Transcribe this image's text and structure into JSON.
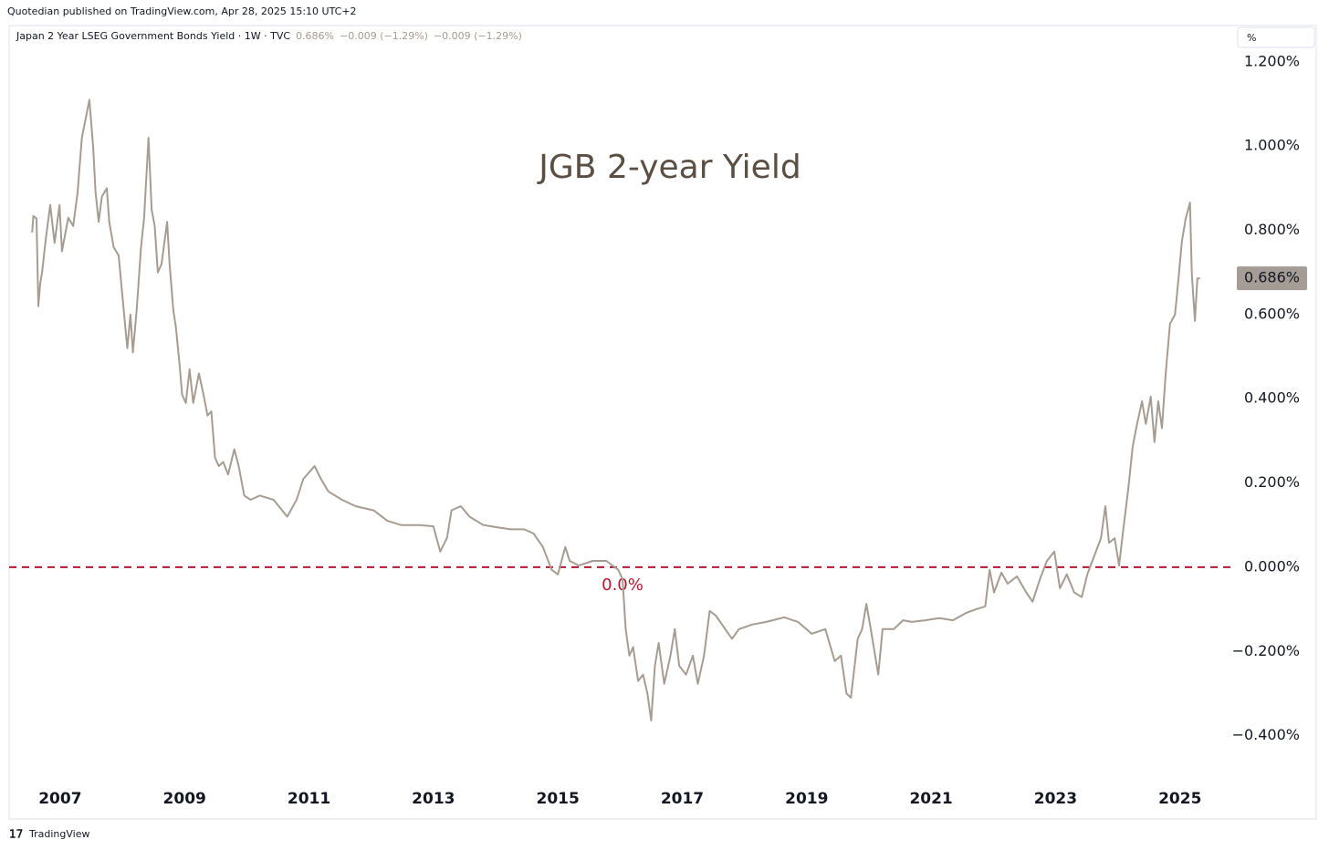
{
  "header": {
    "publisher": "Quotedian published on TradingView.com, Apr 28, 2025 15:10 UTC+2",
    "symbol": "Japan 2 Year LSEG Government Bonds Yield · 1W · TVC",
    "last": "0.686%",
    "change1": "−0.009 (−1.29%)",
    "change2": "−0.009 (−1.29%)",
    "unit": "%",
    "footer": "TradingView"
  },
  "chart_data": {
    "type": "line",
    "title": "JGB 2-year Yield",
    "x": [
      2006.55,
      2006.57,
      2006.62,
      2006.65,
      2006.68,
      2006.71,
      2006.77,
      2006.84,
      2006.91,
      2006.99,
      2007.03,
      2007.13,
      2007.21,
      2007.28,
      2007.35,
      2007.43,
      2007.47,
      2007.53,
      2007.57,
      2007.62,
      2007.67,
      2007.75,
      2007.79,
      2007.86,
      2007.94,
      2008.01,
      2008.08,
      2008.13,
      2008.17,
      2008.23,
      2008.3,
      2008.35,
      2008.42,
      2008.47,
      2008.52,
      2008.57,
      2008.63,
      2008.72,
      2008.76,
      2008.82,
      2008.86,
      2008.92,
      2008.96,
      2009.02,
      2009.08,
      2009.14,
      2009.23,
      2009.29,
      2009.37,
      2009.43,
      2009.49,
      2009.55,
      2009.62,
      2009.7,
      2009.8,
      2009.87,
      2009.96,
      2010.06,
      2010.21,
      2010.43,
      2010.65,
      2010.8,
      2010.91,
      2011.09,
      2011.19,
      2011.31,
      2011.53,
      2011.75,
      2012.04,
      2012.26,
      2012.48,
      2012.78,
      2013.0,
      2013.11,
      2013.22,
      2013.29,
      2013.44,
      2013.58,
      2013.8,
      2014.02,
      2014.24,
      2014.46,
      2014.61,
      2014.76,
      2014.9,
      2015.0,
      2015.12,
      2015.19,
      2015.34,
      2015.56,
      2015.78,
      2015.97,
      2016.04,
      2016.09,
      2016.15,
      2016.21,
      2016.29,
      2016.37,
      2016.44,
      2016.5,
      2016.56,
      2016.62,
      2016.71,
      2016.81,
      2016.88,
      2016.95,
      2017.06,
      2017.17,
      2017.25,
      2017.35,
      2017.44,
      2017.54,
      2017.69,
      2017.8,
      2017.91,
      2018.13,
      2018.35,
      2018.64,
      2018.86,
      2019.08,
      2019.3,
      2019.45,
      2019.55,
      2019.64,
      2019.71,
      2019.82,
      2019.89,
      2019.96,
      2020.03,
      2020.15,
      2020.22,
      2020.4,
      2020.55,
      2020.69,
      2020.91,
      2021.13,
      2021.35,
      2021.57,
      2021.72,
      2021.87,
      2021.94,
      2022.01,
      2022.13,
      2022.23,
      2022.38,
      2022.53,
      2022.63,
      2022.75,
      2022.86,
      2022.98,
      2023.07,
      2023.18,
      2023.3,
      2023.42,
      2023.51,
      2023.62,
      2023.73,
      2023.8,
      2023.86,
      2023.95,
      2024.02,
      2024.09,
      2024.17,
      2024.24,
      2024.31,
      2024.39,
      2024.45,
      2024.53,
      2024.59,
      2024.65,
      2024.71,
      2024.77,
      2024.84,
      2024.92,
      2024.97,
      2025.03,
      2025.09,
      2025.16,
      2025.19,
      2025.24,
      2025.28,
      2025.32
    ],
    "series": [
      {
        "name": "Japan 2 Year LSEG Government Bonds Yield",
        "color": "#a69c91",
        "values": [
          0.795,
          0.834,
          0.828,
          0.62,
          0.675,
          0.7,
          0.78,
          0.86,
          0.77,
          0.86,
          0.75,
          0.83,
          0.81,
          0.89,
          1.02,
          1.08,
          1.11,
          1.0,
          0.89,
          0.82,
          0.88,
          0.9,
          0.82,
          0.76,
          0.74,
          0.63,
          0.52,
          0.6,
          0.51,
          0.61,
          0.76,
          0.83,
          1.02,
          0.85,
          0.81,
          0.7,
          0.72,
          0.82,
          0.72,
          0.61,
          0.57,
          0.48,
          0.41,
          0.39,
          0.47,
          0.39,
          0.46,
          0.42,
          0.36,
          0.37,
          0.26,
          0.24,
          0.25,
          0.22,
          0.28,
          0.24,
          0.17,
          0.16,
          0.17,
          0.16,
          0.12,
          0.16,
          0.21,
          0.24,
          0.21,
          0.18,
          0.16,
          0.145,
          0.135,
          0.11,
          0.1,
          0.1,
          0.097,
          0.037,
          0.07,
          0.135,
          0.145,
          0.12,
          0.1,
          0.095,
          0.09,
          0.09,
          0.08,
          0.048,
          -0.006,
          -0.017,
          0.048,
          0.015,
          0.004,
          0.015,
          0.015,
          -0.006,
          -0.028,
          -0.147,
          -0.21,
          -0.19,
          -0.27,
          -0.255,
          -0.3,
          -0.364,
          -0.234,
          -0.18,
          -0.277,
          -0.21,
          -0.147,
          -0.234,
          -0.255,
          -0.21,
          -0.277,
          -0.21,
          -0.104,
          -0.115,
          -0.147,
          -0.17,
          -0.147,
          -0.136,
          -0.13,
          -0.119,
          -0.13,
          -0.158,
          -0.147,
          -0.223,
          -0.21,
          -0.3,
          -0.31,
          -0.17,
          -0.147,
          -0.087,
          -0.147,
          -0.255,
          -0.147,
          -0.147,
          -0.126,
          -0.13,
          -0.126,
          -0.121,
          -0.126,
          -0.108,
          -0.1,
          -0.093,
          -0.006,
          -0.06,
          -0.013,
          -0.039,
          -0.022,
          -0.06,
          -0.082,
          -0.028,
          0.015,
          0.037,
          -0.05,
          -0.017,
          -0.06,
          -0.071,
          -0.017,
          0.026,
          0.069,
          0.145,
          0.058,
          0.069,
          0.004,
          0.091,
          0.188,
          0.286,
          0.34,
          0.394,
          0.34,
          0.405,
          0.297,
          0.394,
          0.33,
          0.46,
          0.578,
          0.6,
          0.676,
          0.773,
          0.827,
          0.866,
          0.697,
          0.585,
          0.686,
          0.686
        ]
      }
    ],
    "price_label": {
      "value": 0.686,
      "label": "0.686%",
      "color": "#a59d95"
    },
    "hline": {
      "value": 0,
      "label": "0.0%",
      "color": "#b5172f"
    },
    "xlim": [
      2006.18,
      2025.84
    ],
    "xticks": [
      2007,
      2009,
      2011,
      2013,
      2015,
      2017,
      2019,
      2021,
      2023,
      2025
    ],
    "ylim": [
      -0.494,
      1.282
    ],
    "yticks": [
      {
        "value": -0.4,
        "label": "−0.400%"
      },
      {
        "value": -0.2,
        "label": "−0.200%"
      },
      {
        "value": 0,
        "label": "0.000%"
      },
      {
        "value": 0.2,
        "label": "0.200%"
      },
      {
        "value": 0.4,
        "label": "0.400%"
      },
      {
        "value": 0.6,
        "label": "0.600%"
      },
      {
        "value": 0.8,
        "label": "0.800%"
      },
      {
        "value": 1.0,
        "label": "1.000%"
      },
      {
        "value": 1.2,
        "label": "1.200%"
      }
    ]
  }
}
